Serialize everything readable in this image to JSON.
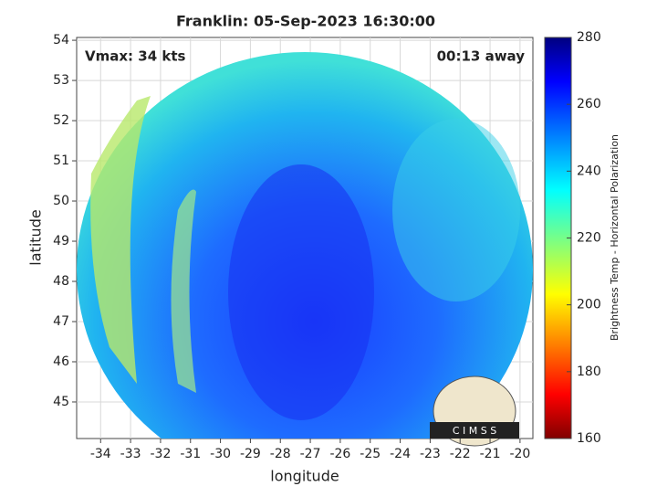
{
  "chart_data": {
    "type": "heatmap",
    "title": "Franklin: 05-Sep-2023 16:30:00",
    "annotations": [
      "Vmax: 34 kts",
      "00:13 away"
    ],
    "x_label": "longitude",
    "y_label": "latitude",
    "xlim": [
      -34.8,
      -19.57
    ],
    "xticks": [
      -34,
      -33,
      -32,
      -31,
      -30,
      -29,
      -28,
      -27,
      -26,
      -25,
      -24,
      -23,
      -22,
      -21,
      -20
    ],
    "ylim": [
      44.09,
      54.07
    ],
    "yticks": [
      45,
      46,
      47,
      48,
      49,
      50,
      51,
      52,
      53,
      54
    ],
    "grid": true,
    "colorbar": {
      "label": "Brightness Temp - Horizontal Polarization",
      "lim": [
        160,
        280
      ],
      "ticks": [
        160,
        180,
        200,
        220,
        240,
        260,
        280
      ],
      "colormap": "jet"
    },
    "logo_text": "C I M S S"
  }
}
